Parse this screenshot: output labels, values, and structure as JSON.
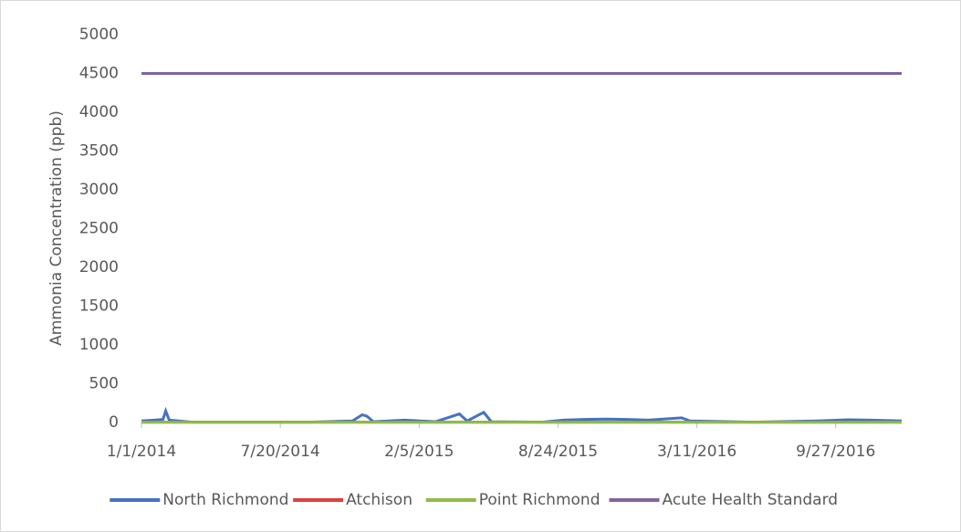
{
  "chart_data": {
    "type": "line",
    "y_label": "Ammonia Concentration (ppb)",
    "x": [
      "1/1/2014",
      "1/20/2014",
      "2/1/2014",
      "2/5/2014",
      "2/10/2014",
      "3/15/2014",
      "6/1/2014",
      "9/1/2014",
      "11/1/2014",
      "11/15/2014",
      "11/22/2014",
      "12/1/2014",
      "1/15/2015",
      "3/1/2015",
      "4/4/2015",
      "4/15/2015",
      "5/9/2015",
      "5/20/2015",
      "8/1/2015",
      "9/1/2015",
      "10/1/2015",
      "11/1/2015",
      "12/1/2015",
      "1/1/2016",
      "2/18/2016",
      "3/1/2016",
      "6/1/2016",
      "9/1/2016",
      "10/15/2016",
      "11/15/2016",
      "12/31/2016"
    ],
    "series": [
      {
        "name": "North Richmond",
        "color": "#4472c4",
        "values": [
          20,
          30,
          40,
          150,
          30,
          5,
          5,
          5,
          20,
          100,
          80,
          10,
          30,
          10,
          110,
          20,
          130,
          10,
          5,
          30,
          40,
          45,
          40,
          30,
          60,
          20,
          5,
          20,
          35,
          30,
          20
        ]
      },
      {
        "name": "Atchison",
        "color": "#e0403a",
        "values": [
          5,
          5,
          5,
          5,
          5,
          5,
          5,
          5,
          5,
          5,
          5,
          5,
          5,
          5,
          5,
          5,
          5,
          5,
          5,
          5,
          5,
          5,
          5,
          5,
          5,
          5,
          5,
          5,
          5,
          5,
          5
        ]
      },
      {
        "name": "Point Richmond",
        "color": "#8fbc45",
        "values": [
          3,
          3,
          3,
          3,
          3,
          3,
          3,
          3,
          3,
          3,
          3,
          3,
          3,
          3,
          3,
          3,
          3,
          3,
          3,
          3,
          3,
          3,
          3,
          3,
          3,
          3,
          3,
          3,
          3,
          3,
          3
        ]
      },
      {
        "name": "Acute Health Standard",
        "color": "#8064a2",
        "values": [
          4500,
          4500,
          4500,
          4500,
          4500,
          4500,
          4500,
          4500,
          4500,
          4500,
          4500,
          4500,
          4500,
          4500,
          4500,
          4500,
          4500,
          4500,
          4500,
          4500,
          4500,
          4500,
          4500,
          4500,
          4500,
          4500,
          4500,
          4500,
          4500,
          4500,
          4500
        ]
      }
    ],
    "xlim": [
      "1/1/2014",
      "12/31/2016"
    ],
    "xticks": [
      "1/1/2014",
      "7/20/2014",
      "2/5/2015",
      "8/24/2015",
      "3/11/2016",
      "9/27/2016"
    ],
    "ylim": [
      0,
      5000
    ],
    "yticks": [
      0,
      500,
      1000,
      1500,
      2000,
      2500,
      3000,
      3500,
      4000,
      4500,
      5000
    ],
    "grid": false,
    "legend": "bottom"
  }
}
